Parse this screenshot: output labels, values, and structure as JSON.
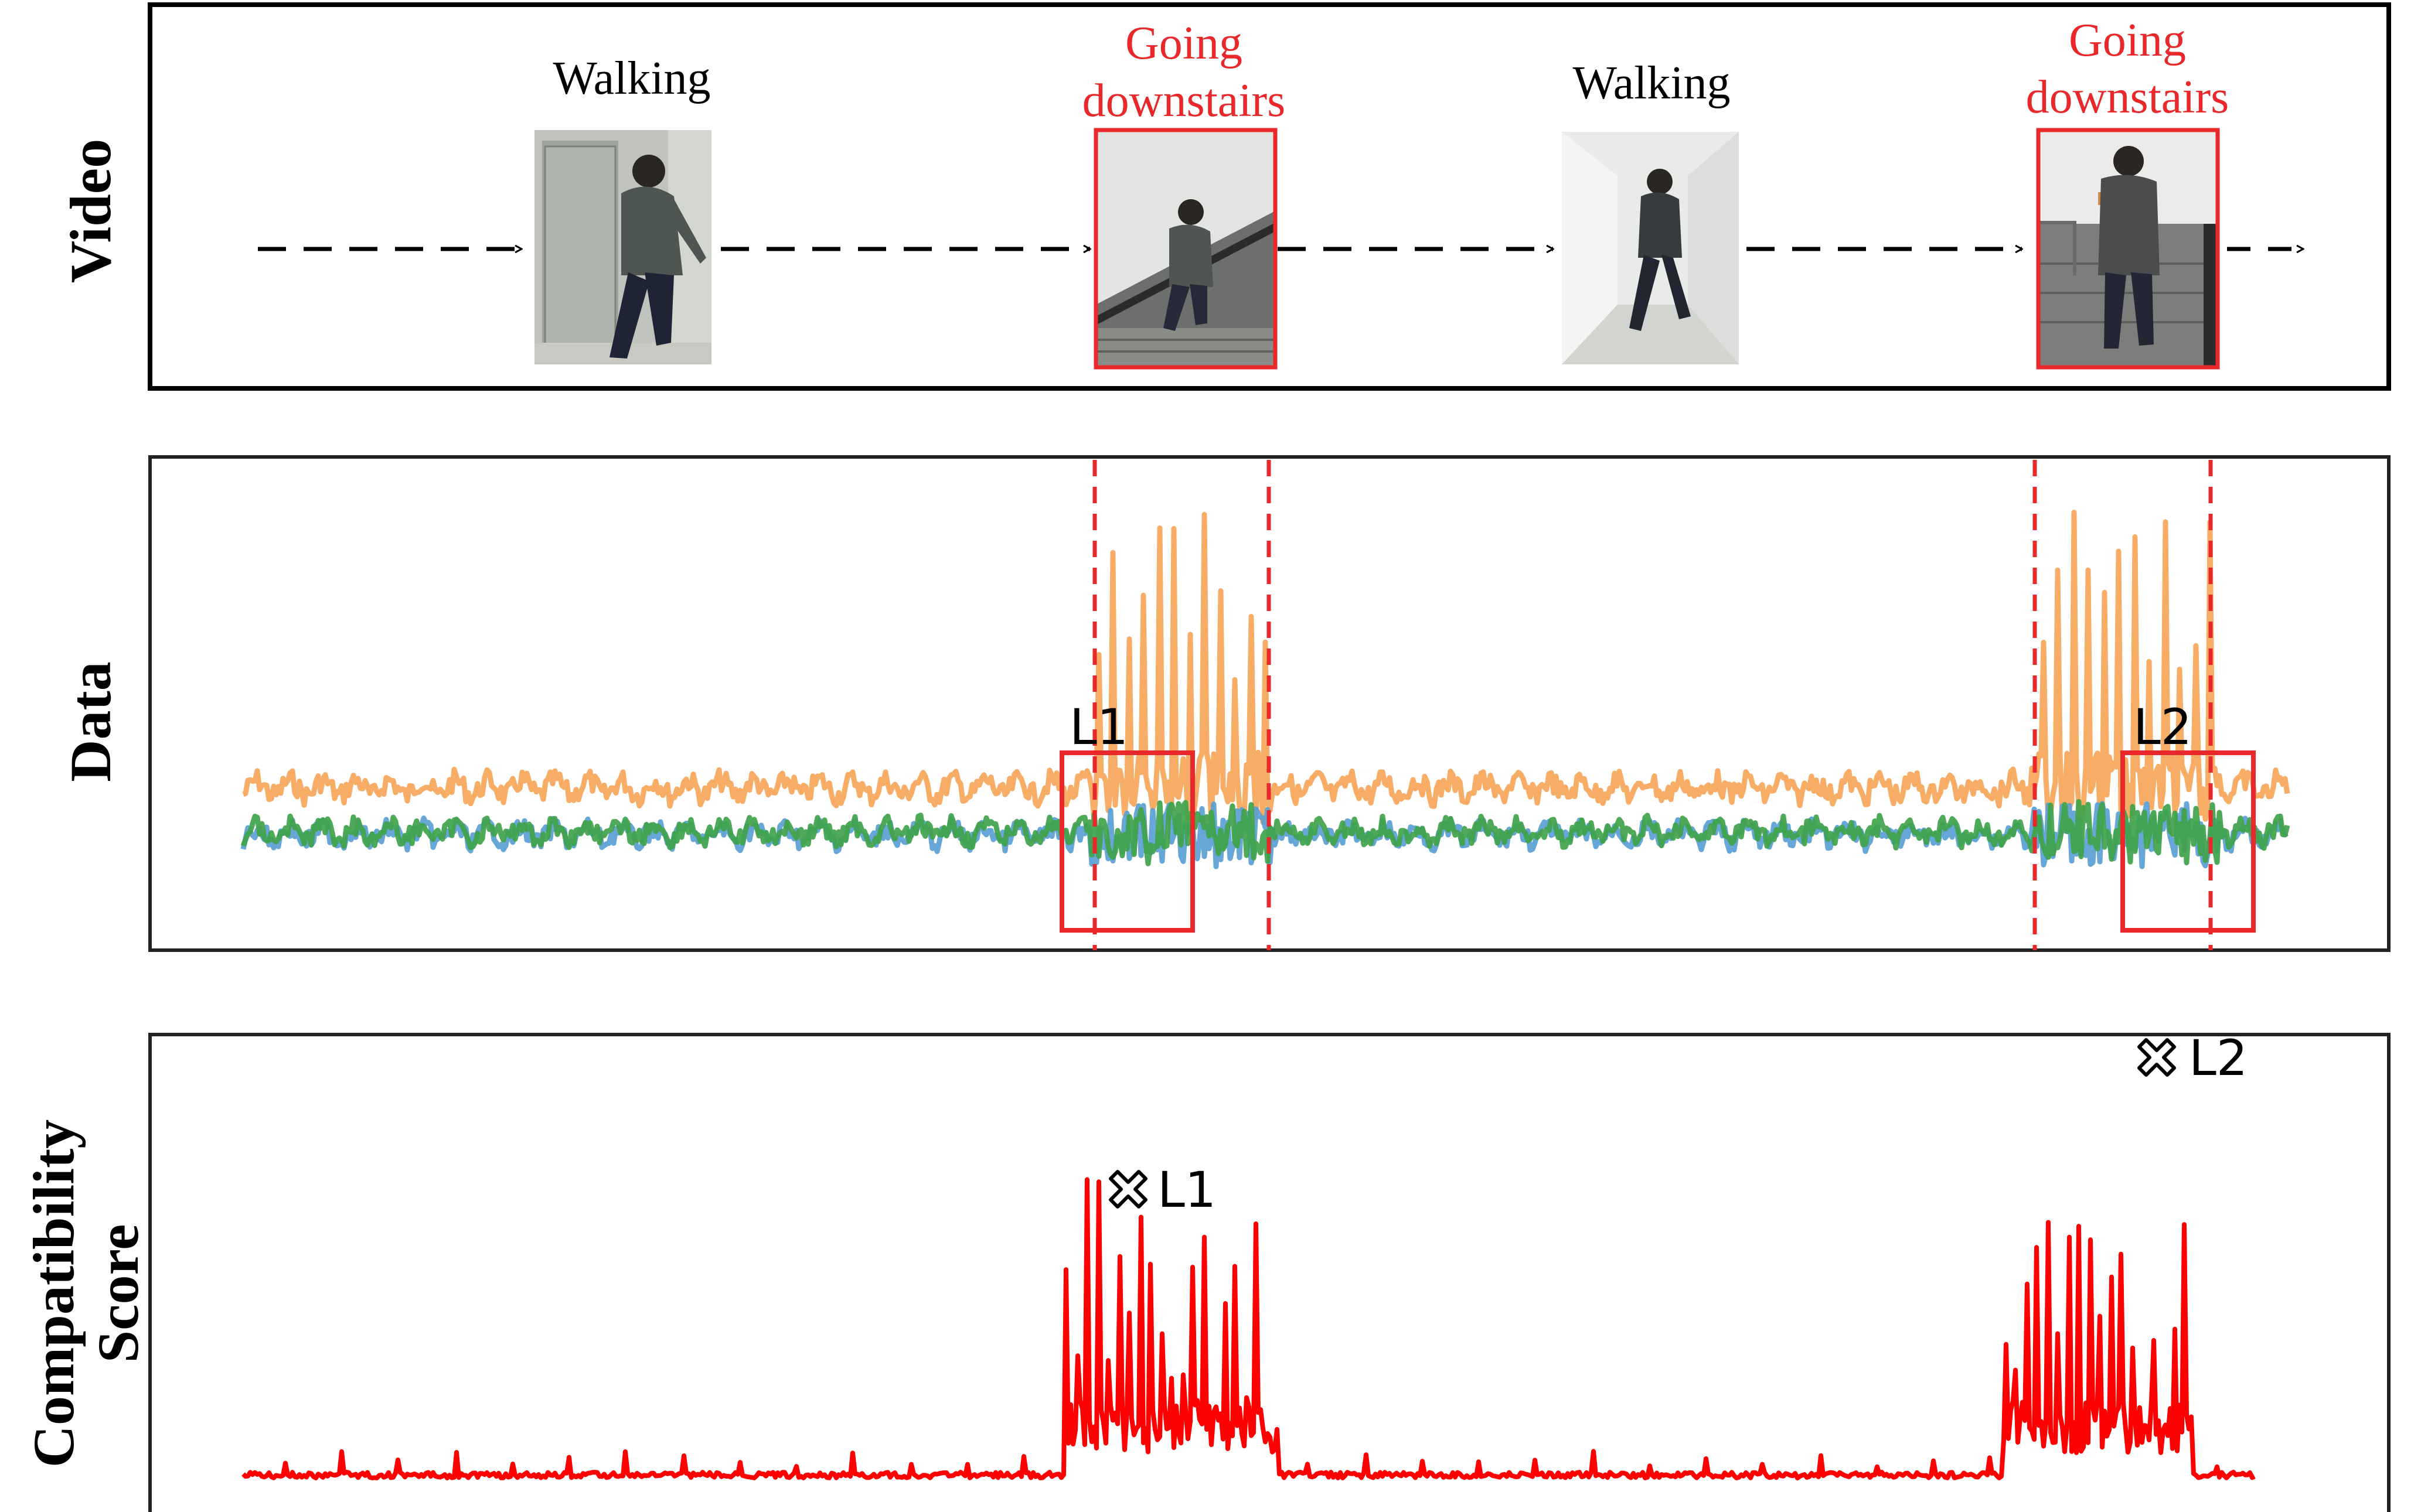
{
  "rows": {
    "video_label": "Video",
    "data_label": "Data",
    "score_label_line1": "Compatibility",
    "score_label_line2": "Score"
  },
  "video_frames": [
    {
      "activity": "Walking",
      "highlighted": false
    },
    {
      "activity_line1": "Going",
      "activity_line2": "downstairs",
      "highlighted": true
    },
    {
      "activity": "Walking",
      "highlighted": false
    },
    {
      "activity_line1": "Going",
      "activity_line2": "downstairs",
      "highlighted": true
    }
  ],
  "markers": {
    "l1": "L1",
    "l2": "L2"
  },
  "colors": {
    "highlight": "#e8282a",
    "accel_orange": "#f7a65a",
    "accel_blue": "#5a9fd4",
    "accel_green": "#3fa34a",
    "score_red": "#ff0000",
    "frame_border": "#000000"
  }
}
